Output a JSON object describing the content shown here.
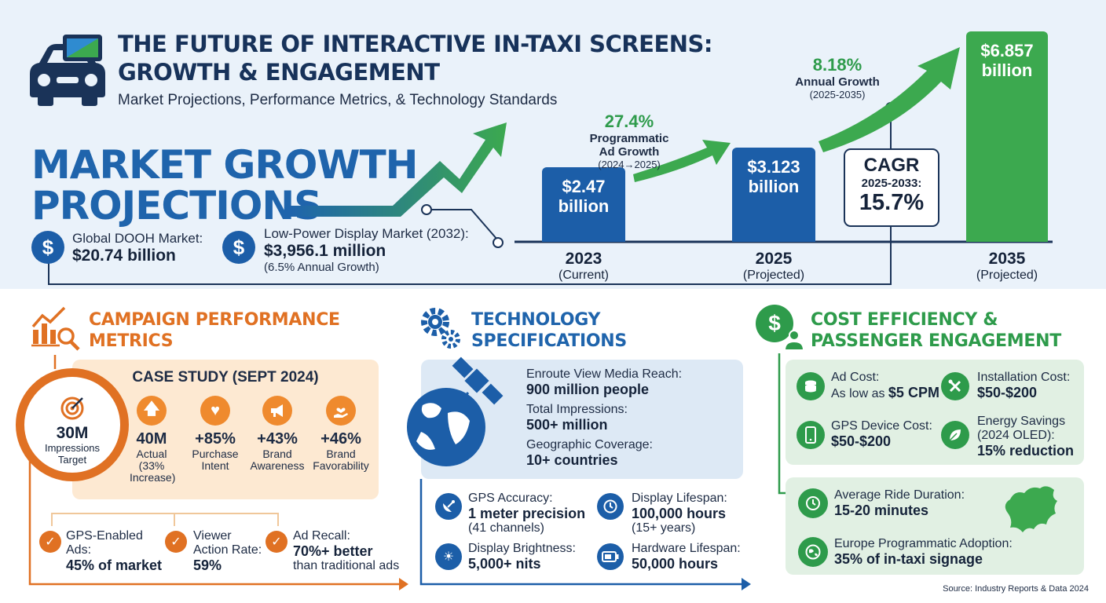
{
  "header": {
    "title_line1": "THE FUTURE OF INTERACTIVE IN-TAXI SCREENS:",
    "title_line2": "GROWTH & ENGAGEMENT",
    "subtitle": "Market Projections, Performance Metrics, & Technology Standards",
    "icon": "taxi-screen-icon"
  },
  "market": {
    "heading_line1": "MARKET GROWTH",
    "heading_line2": "PROJECTIONS",
    "dooh_label": "Global DOOH Market:",
    "dooh_value": "$20.74 billion",
    "lowpower_label": "Low-Power Display Market (2032):",
    "lowpower_value": "$3,956.1 million",
    "lowpower_note": "(6.5% Annual Growth)",
    "bars": [
      {
        "value_line1": "$2.47",
        "value_line2": "billion",
        "year": "2023",
        "status": "(Current)",
        "amount": 2.47
      },
      {
        "value_line1": "$3.123",
        "value_line2": "billion",
        "year": "2025",
        "status": "(Projected)",
        "amount": 3.123
      },
      {
        "value_line1": "$6.857",
        "value_line2": "billion",
        "year": "2035",
        "status": "(Projected)",
        "amount": 6.857
      }
    ],
    "programmatic_pct": "27.4%",
    "programmatic_line1": "Programmatic",
    "programmatic_line2": "Ad Growth",
    "programmatic_period": "(2024→2025)",
    "annual_pct": "8.18%",
    "annual_label": "Annual Growth",
    "annual_period": "(2025-2035)",
    "cagr_label": "CAGR",
    "cagr_period": "2025-2033:",
    "cagr_value": "15.7%",
    "colors": {
      "blue": "#1c5ea8",
      "green": "#3ca94f"
    }
  },
  "campaign": {
    "heading_line1": "CAMPAIGN PERFORMANCE",
    "heading_line2": "METRICS",
    "case_title": "CASE STUDY (SEPT 2024)",
    "target_value": "30M",
    "target_line1": "Impressions",
    "target_line2": "Target",
    "metrics": [
      {
        "icon": "arrow-up-icon",
        "value": "40M",
        "label_line1": "Actual",
        "label_line2": "(33%",
        "label_line3": "Increase)"
      },
      {
        "icon": "heart-icon",
        "value": "+85%",
        "label_line1": "Purchase",
        "label_line2": "Intent",
        "label_line3": ""
      },
      {
        "icon": "megaphone-icon",
        "value": "+43%",
        "label_line1": "Brand",
        "label_line2": "Awareness",
        "label_line3": ""
      },
      {
        "icon": "hand-heart-icon",
        "value": "+46%",
        "label_line1": "Brand",
        "label_line2": "Favorability",
        "label_line3": ""
      }
    ],
    "bottom": [
      {
        "line1": "GPS-Enabled",
        "line2": "Ads:",
        "value": "45% of market"
      },
      {
        "line1": "Viewer",
        "line2": "Action Rate:",
        "value": "59%"
      },
      {
        "line1": "Ad Recall:",
        "value": "70%+ better",
        "line3": "than traditional ads"
      }
    ]
  },
  "tech": {
    "heading_line1": "TECHNOLOGY",
    "heading_line2": "SPECIFICATIONS",
    "reach": [
      {
        "label": "Enroute View Media Reach:",
        "value": "900 million people"
      },
      {
        "label": "Total Impressions:",
        "value": "500+ million"
      },
      {
        "label": "Geographic Coverage:",
        "value": "10+ countries"
      }
    ],
    "specs": [
      {
        "icon": "satellite-dish-icon",
        "label": "GPS Accuracy:",
        "value": "1 meter precision",
        "note": "(41 channels)"
      },
      {
        "icon": "clock-icon",
        "label": "Display Lifespan:",
        "value": "100,000 hours",
        "note": "(15+ years)"
      },
      {
        "icon": "sun-icon",
        "label": "Display Brightness:",
        "value": "5,000+ nits",
        "note": ""
      },
      {
        "icon": "battery-icon",
        "label": "Hardware Lifespan:",
        "value": "50,000 hours",
        "note": ""
      }
    ]
  },
  "cost": {
    "heading_line1": "COST EFFICIENCY &",
    "heading_line2": "PASSENGER ENGAGEMENT",
    "items": [
      {
        "icon": "coins-icon",
        "label": "Ad Cost:",
        "label2": "As low as",
        "value": "$5 CPM"
      },
      {
        "icon": "tools-icon",
        "label": "Installation Cost:",
        "label2": "",
        "value": "$50-$200"
      },
      {
        "icon": "phone-icon",
        "label": "GPS Device Cost:",
        "label2": "",
        "value": "$50-$200"
      },
      {
        "icon": "leaf-icon",
        "label": "Energy Savings",
        "label2": "(2024 OLED):",
        "value": "15% reduction"
      }
    ],
    "engagement": [
      {
        "icon": "clock-icon",
        "label": "Average Ride Duration:",
        "value": "15-20 minutes"
      },
      {
        "icon": "globe-europe-icon",
        "label": "Europe Programmatic Adoption:",
        "value": "35% of in-taxi signage"
      }
    ]
  },
  "footer": {
    "source": "Source: Industry Reports & Data 2024"
  }
}
